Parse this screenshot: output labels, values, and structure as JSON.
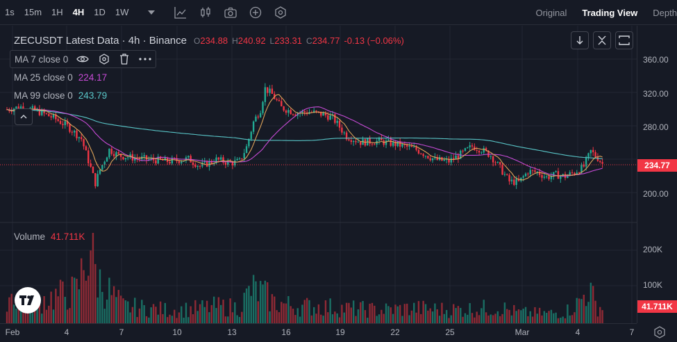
{
  "toolbar": {
    "timeframes": [
      {
        "label": "1s",
        "active": false
      },
      {
        "label": "15m",
        "active": false
      },
      {
        "label": "1H",
        "active": false
      },
      {
        "label": "4H",
        "active": true
      },
      {
        "label": "1D",
        "active": false
      },
      {
        "label": "1W",
        "active": false
      }
    ],
    "views": [
      {
        "label": "Original",
        "active": false
      },
      {
        "label": "Trading View",
        "active": true
      },
      {
        "label": "Depth",
        "active": false
      }
    ]
  },
  "legend": {
    "symbol": "ZECUSDT Latest Data · 4h · Binance",
    "o_label": "O",
    "o_value": "234.88",
    "h_label": "H",
    "h_value": "240.92",
    "l_label": "L",
    "l_value": "233.31",
    "c_label": "C",
    "c_value": "234.77",
    "change": "-0.13 (−0.06%)"
  },
  "indicators": [
    {
      "name": "MA 7 close 0",
      "value": "",
      "color": "#e0a55a"
    },
    {
      "name": "MA 25 close 0",
      "value": "224.17",
      "color": "#c74bd6"
    },
    {
      "name": "MA 99 close 0",
      "value": "243.79",
      "color": "#59c6c8"
    }
  ],
  "volume": {
    "label": "Volume",
    "value": "41.711K"
  },
  "colors": {
    "up": "#22ab94",
    "down": "#f23645",
    "ma7": "#e0a55a",
    "ma25": "#c74bd6",
    "ma99": "#59c6c8"
  },
  "chart_data": {
    "type": "candlestick",
    "symbol": "ZECUSDT",
    "interval": "4h",
    "price_axis_ticks": [
      "360.00",
      "320.00",
      "280.00",
      "200.00"
    ],
    "volume_axis_ticks": [
      "200K",
      "100K"
    ],
    "last_price": "234.77",
    "last_volume": "41.711K",
    "x_ticks": [
      "Feb",
      "4",
      "7",
      "10",
      "13",
      "16",
      "19",
      "22",
      "25",
      "Mar",
      "4",
      "7"
    ],
    "ylim": [
      180,
      380
    ],
    "price_anchors": [
      [
        0,
        300
      ],
      [
        6,
        303
      ],
      [
        13,
        298
      ],
      [
        20,
        290
      ],
      [
        26,
        280
      ],
      [
        32,
        265
      ],
      [
        36,
        230
      ],
      [
        38,
        212
      ],
      [
        40,
        228
      ],
      [
        44,
        252
      ],
      [
        48,
        245
      ],
      [
        55,
        242
      ],
      [
        62,
        240
      ],
      [
        70,
        238
      ],
      [
        78,
        241
      ],
      [
        83,
        232
      ],
      [
        90,
        240
      ],
      [
        96,
        236
      ],
      [
        100,
        238
      ],
      [
        103,
        255
      ],
      [
        106,
        285
      ],
      [
        109,
        300
      ],
      [
        111,
        325
      ],
      [
        114,
        318
      ],
      [
        118,
        302
      ],
      [
        124,
        296
      ],
      [
        130,
        297
      ],
      [
        136,
        294
      ],
      [
        140,
        290
      ],
      [
        146,
        268
      ],
      [
        152,
        261
      ],
      [
        160,
        262
      ],
      [
        168,
        258
      ],
      [
        176,
        252
      ],
      [
        184,
        240
      ],
      [
        190,
        238
      ],
      [
        196,
        248
      ],
      [
        200,
        256
      ],
      [
        204,
        252
      ],
      [
        208,
        245
      ],
      [
        212,
        230
      ],
      [
        216,
        214
      ],
      [
        220,
        213
      ],
      [
        224,
        226
      ],
      [
        228,
        225
      ],
      [
        232,
        219
      ],
      [
        236,
        222
      ],
      [
        240,
        220
      ],
      [
        244,
        225
      ],
      [
        248,
        232
      ],
      [
        251,
        250
      ],
      [
        254,
        242
      ],
      [
        256,
        235
      ]
    ],
    "volume_anchors": [
      [
        0,
        80
      ],
      [
        10,
        55
      ],
      [
        20,
        70
      ],
      [
        30,
        85
      ],
      [
        36,
        215
      ],
      [
        38,
        140
      ],
      [
        40,
        110
      ],
      [
        50,
        45
      ],
      [
        60,
        40
      ],
      [
        70,
        35
      ],
      [
        80,
        38
      ],
      [
        90,
        45
      ],
      [
        100,
        42
      ],
      [
        105,
        90
      ],
      [
        110,
        80
      ],
      [
        115,
        55
      ],
      [
        125,
        45
      ],
      [
        135,
        45
      ],
      [
        145,
        40
      ],
      [
        160,
        35
      ],
      [
        175,
        40
      ],
      [
        190,
        36
      ],
      [
        200,
        38
      ],
      [
        212,
        42
      ],
      [
        220,
        28
      ],
      [
        232,
        26
      ],
      [
        240,
        30
      ],
      [
        246,
        55
      ],
      [
        250,
        95
      ],
      [
        253,
        50
      ],
      [
        256,
        42
      ]
    ]
  }
}
